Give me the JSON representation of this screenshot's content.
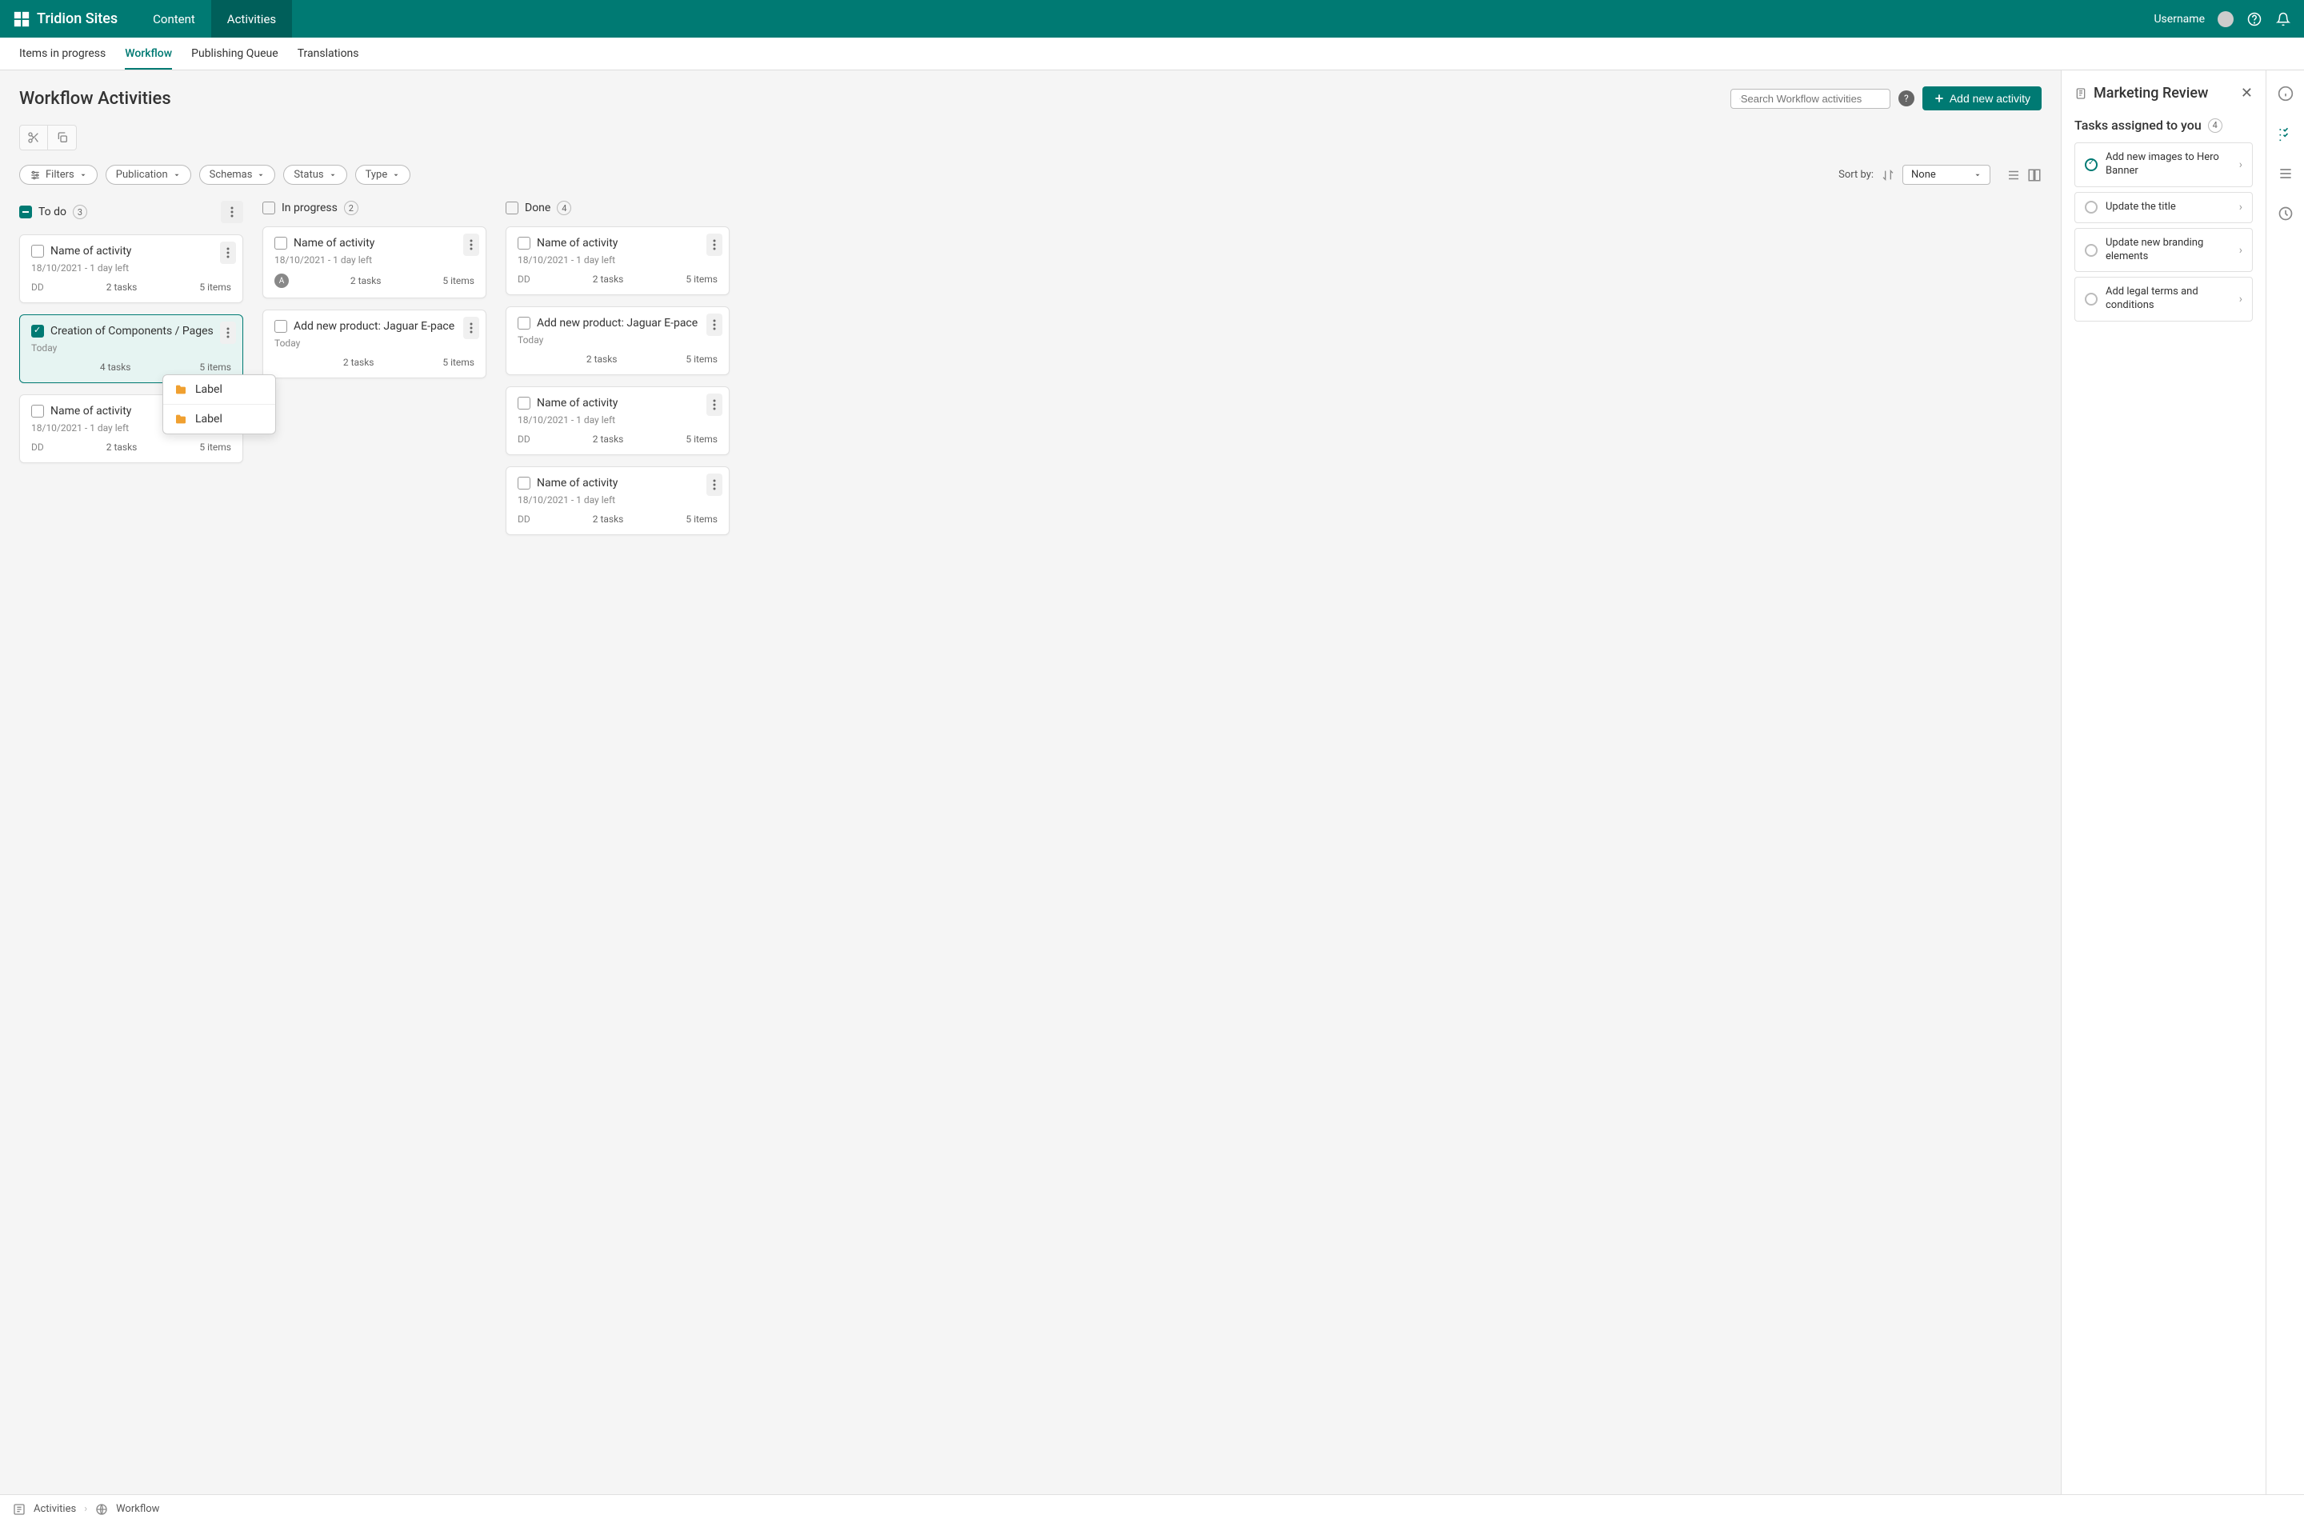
{
  "brand": "Tridion Sites",
  "topnav": {
    "tabs": [
      "Content",
      "Activities"
    ],
    "active": "Activities",
    "username": "Username"
  },
  "subnav": {
    "tabs": [
      "Items in progress",
      "Workflow",
      "Publishing Queue",
      "Translations"
    ],
    "active": "Workflow"
  },
  "page": {
    "title": "Workflow Activities",
    "search_placeholder": "Search Workflow activities",
    "add_button": "Add new activity"
  },
  "filters": {
    "filters_label": "Filters",
    "pills": [
      "Publication",
      "Schemas",
      "Status",
      "Type"
    ],
    "sortby_label": "Sort by:",
    "sort_value": "None"
  },
  "columns": [
    {
      "id": "todo",
      "title": "To do",
      "count": 3,
      "check_state": "minus",
      "cards": [
        {
          "title": "Name of activity",
          "date": "18/10/2021 - 1 day left",
          "left_badge": "DD",
          "tasks": "2 tasks",
          "items": "5 items",
          "selected": false
        },
        {
          "title": "Creation of Components / Pages",
          "date": "Today",
          "left_badge": "",
          "tasks": "4 tasks",
          "items": "5 items",
          "selected": true
        },
        {
          "title": "Name of activity",
          "date": "18/10/2021 - 1 day left",
          "left_badge": "DD",
          "tasks": "2 tasks",
          "items": "5 items",
          "selected": false
        }
      ]
    },
    {
      "id": "inprogress",
      "title": "In progress",
      "count": 2,
      "check_state": "empty",
      "cards": [
        {
          "title": "Name of activity",
          "date": "18/10/2021 - 1 day left",
          "left_badge": "A",
          "avatar": true,
          "tasks": "2 tasks",
          "items": "5 items",
          "selected": false
        },
        {
          "title": "Add new product: Jaguar E-pace",
          "date": "Today",
          "left_badge": "",
          "tasks": "2 tasks",
          "items": "5 items",
          "selected": false
        }
      ]
    },
    {
      "id": "done",
      "title": "Done",
      "count": 4,
      "check_state": "empty",
      "cards": [
        {
          "title": "Name of activity",
          "date": "18/10/2021 - 1 day left",
          "left_badge": "DD",
          "tasks": "2 tasks",
          "items": "5 items",
          "selected": false
        },
        {
          "title": "Add new product: Jaguar E-pace",
          "date": "Today",
          "left_badge": "",
          "tasks": "2 tasks",
          "items": "5 items",
          "selected": false
        },
        {
          "title": "Name of activity",
          "date": "18/10/2021 - 1 day left",
          "left_badge": "DD",
          "tasks": "2 tasks",
          "items": "5 items",
          "selected": false
        },
        {
          "title": "Name of activity",
          "date": "18/10/2021 - 1 day left",
          "left_badge": "DD",
          "tasks": "2 tasks",
          "items": "5 items",
          "selected": false
        }
      ]
    }
  ],
  "popover": {
    "items": [
      "Label",
      "Label"
    ]
  },
  "side_panel": {
    "title": "Marketing Review",
    "tasks_title": "Tasks assigned to you",
    "tasks_count": 4,
    "tasks": [
      {
        "label": "Add new images to Hero Banner",
        "done": true
      },
      {
        "label": "Update the title",
        "done": false
      },
      {
        "label": "Update new branding elements",
        "done": false
      },
      {
        "label": "Add legal terms and conditions",
        "done": false
      }
    ]
  },
  "breadcrumb": {
    "items": [
      "Activities",
      "Workflow"
    ]
  },
  "colors": {
    "primary": "#007a73",
    "bg": "#f5f5f5",
    "border": "#e0e0e0"
  }
}
